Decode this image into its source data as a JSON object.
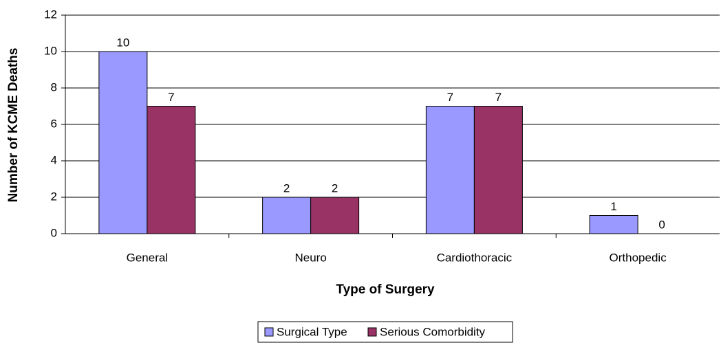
{
  "chart_data": {
    "type": "bar",
    "x_label": "Type of Surgery",
    "y_label": "Number of KCME Deaths",
    "categories": [
      "General",
      "Neuro",
      "Cardiothoracic",
      "Orthopedic"
    ],
    "series": [
      {
        "name": "Surgical Type",
        "color": "#9999ff",
        "values": [
          10,
          2,
          7,
          1
        ]
      },
      {
        "name": "Serious Comorbidity",
        "color": "#993366",
        "values": [
          7,
          2,
          7,
          0
        ]
      }
    ],
    "ylim": [
      0,
      12
    ],
    "yticks": [
      0,
      2,
      4,
      6,
      8,
      10,
      12
    ],
    "grid": true,
    "legend": "bottom"
  }
}
